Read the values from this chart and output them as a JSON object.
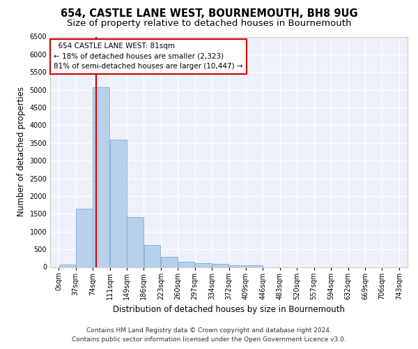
{
  "title": "654, CASTLE LANE WEST, BOURNEMOUTH, BH8 9UG",
  "subtitle": "Size of property relative to detached houses in Bournemouth",
  "xlabel": "Distribution of detached houses by size in Bournemouth",
  "ylabel": "Number of detached properties",
  "footer_line1": "Contains HM Land Registry data © Crown copyright and database right 2024.",
  "footer_line2": "Contains public sector information licensed under the Open Government Licence v3.0.",
  "bar_heights": [
    75,
    1650,
    5075,
    3600,
    1400,
    625,
    290,
    140,
    110,
    80,
    55,
    40,
    0,
    0,
    0,
    0,
    0,
    0,
    0,
    0
  ],
  "bin_labels": [
    "0sqm",
    "37sqm",
    "74sqm",
    "111sqm",
    "149sqm",
    "186sqm",
    "223sqm",
    "260sqm",
    "297sqm",
    "334sqm",
    "372sqm",
    "409sqm",
    "446sqm",
    "483sqm",
    "520sqm",
    "557sqm",
    "594sqm",
    "632sqm",
    "669sqm",
    "706sqm",
    "743sqm"
  ],
  "bar_color": "#b8d0ea",
  "bar_edge_color": "#7aafd4",
  "annotation_line1": "654 CASTLE LANE WEST: 81sqm",
  "annotation_line2": "← 18% of detached houses are smaller (2,323)",
  "annotation_line3": "81% of semi-detached houses are larger (10,447) →",
  "vline_x": 81,
  "vline_color": "#cc0000",
  "annotation_box_color": "#ffffff",
  "annotation_box_edge": "#cc0000",
  "ylim": [
    0,
    6500
  ],
  "bin_width": 37,
  "n_bins": 20,
  "background_color": "#eef1fb",
  "title_fontsize": 10.5,
  "subtitle_fontsize": 9.5,
  "axis_label_fontsize": 8.5,
  "tick_fontsize": 7,
  "annotation_fontsize": 7.5,
  "footer_fontsize": 6.5,
  "grid_color": "#ffffff",
  "spine_color": "#cccccc"
}
